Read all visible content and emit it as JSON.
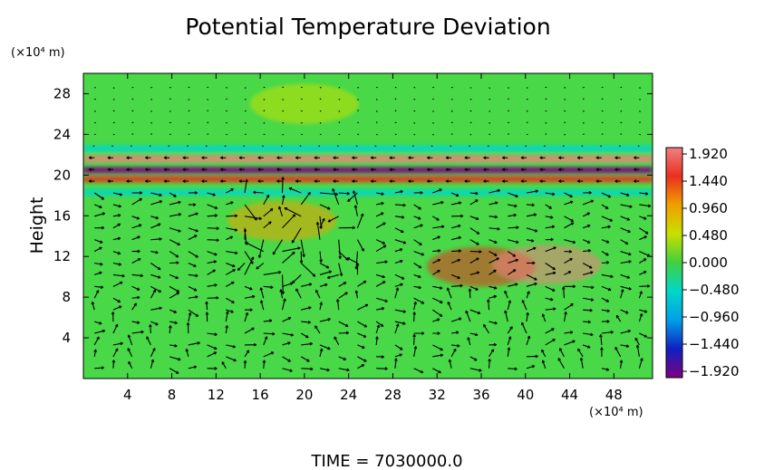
{
  "chart_data": {
    "type": "heatmap",
    "title": "Potential Temperature Deviation",
    "ylabel": "Height",
    "xunit": "(×10⁴ m)",
    "yunit": "(×10⁴ m)",
    "footer": "TIME = 7030000.0",
    "xlim": [
      0,
      51.5
    ],
    "ylim": [
      0,
      30
    ],
    "xticks": [
      "4",
      "8",
      "12",
      "16",
      "20",
      "24",
      "28",
      "32",
      "36",
      "40",
      "44",
      "48"
    ],
    "yticks": [
      "4",
      "8",
      "12",
      "16",
      "20",
      "24",
      "28"
    ],
    "xtick_values": [
      4,
      8,
      12,
      16,
      20,
      24,
      28,
      32,
      36,
      40,
      44,
      48
    ],
    "ytick_values": [
      4,
      8,
      12,
      16,
      20,
      24,
      28
    ],
    "colorbar": {
      "labels": [
        "1.920",
        "1.440",
        "0.960",
        "0.480",
        "0.000",
        "−0.480",
        "−0.960",
        "−1.440",
        "−1.920"
      ],
      "values": [
        1.92,
        1.44,
        0.96,
        0.48,
        0.0,
        -0.48,
        -0.96,
        -1.44,
        -1.92
      ],
      "colors": [
        "#f08080",
        "#e83020",
        "#f0a000",
        "#c8e000",
        "#40d040",
        "#00d8c8",
        "#00a0e8",
        "#1020c0",
        "#800080"
      ]
    },
    "field_features": [
      {
        "type": "band",
        "y": 20.5,
        "value": -1.9
      },
      {
        "type": "band",
        "y": 21.6,
        "value": 1.9
      },
      {
        "type": "band",
        "y": 19.6,
        "value": 1.5
      },
      {
        "type": "band",
        "y": 18.3,
        "value": -0.6
      },
      {
        "type": "band",
        "y": 22.6,
        "value": -0.5
      },
      {
        "type": "blob",
        "x": 20,
        "y": 27,
        "value": 0.6
      },
      {
        "type": "blob",
        "x": 18,
        "y": 15.5,
        "value": 1.0
      },
      {
        "type": "blob",
        "x": 36,
        "y": 11,
        "value": 1.2
      },
      {
        "type": "blob",
        "x": 42,
        "y": 11.2,
        "value": 1.9
      }
    ]
  }
}
